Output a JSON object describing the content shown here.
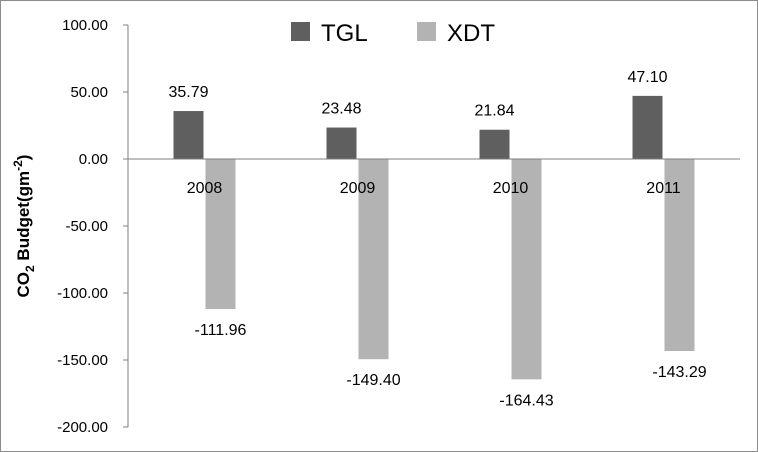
{
  "chart_data": {
    "type": "bar",
    "title": "",
    "xlabel": "",
    "ylabel_parts": [
      "CO",
      "2",
      " Budget(gm",
      "-2",
      ")"
    ],
    "ylim": [
      -200,
      100
    ],
    "yticks": [
      100,
      50,
      0,
      -50,
      -100,
      -150,
      -200
    ],
    "ytick_labels": [
      "100.00",
      "50.00",
      "0.00",
      "-50.00",
      "-100.00",
      "-150.00",
      "-200.00"
    ],
    "categories": [
      "2008",
      "2009",
      "2010",
      "2011"
    ],
    "series": [
      {
        "name": "TGL",
        "values": [
          35.79,
          23.48,
          21.84,
          47.1
        ],
        "labels": [
          "35.79",
          "23.48",
          "21.84",
          "47.10"
        ],
        "color": "#5f5f5f"
      },
      {
        "name": "XDT",
        "values": [
          -111.96,
          -149.4,
          -164.43,
          -143.29
        ],
        "labels": [
          "-111.96",
          "-149.40",
          "-164.43",
          "-143.29"
        ],
        "color": "#b3b3b3"
      }
    ],
    "grid": false,
    "legend_position": "top-center"
  }
}
